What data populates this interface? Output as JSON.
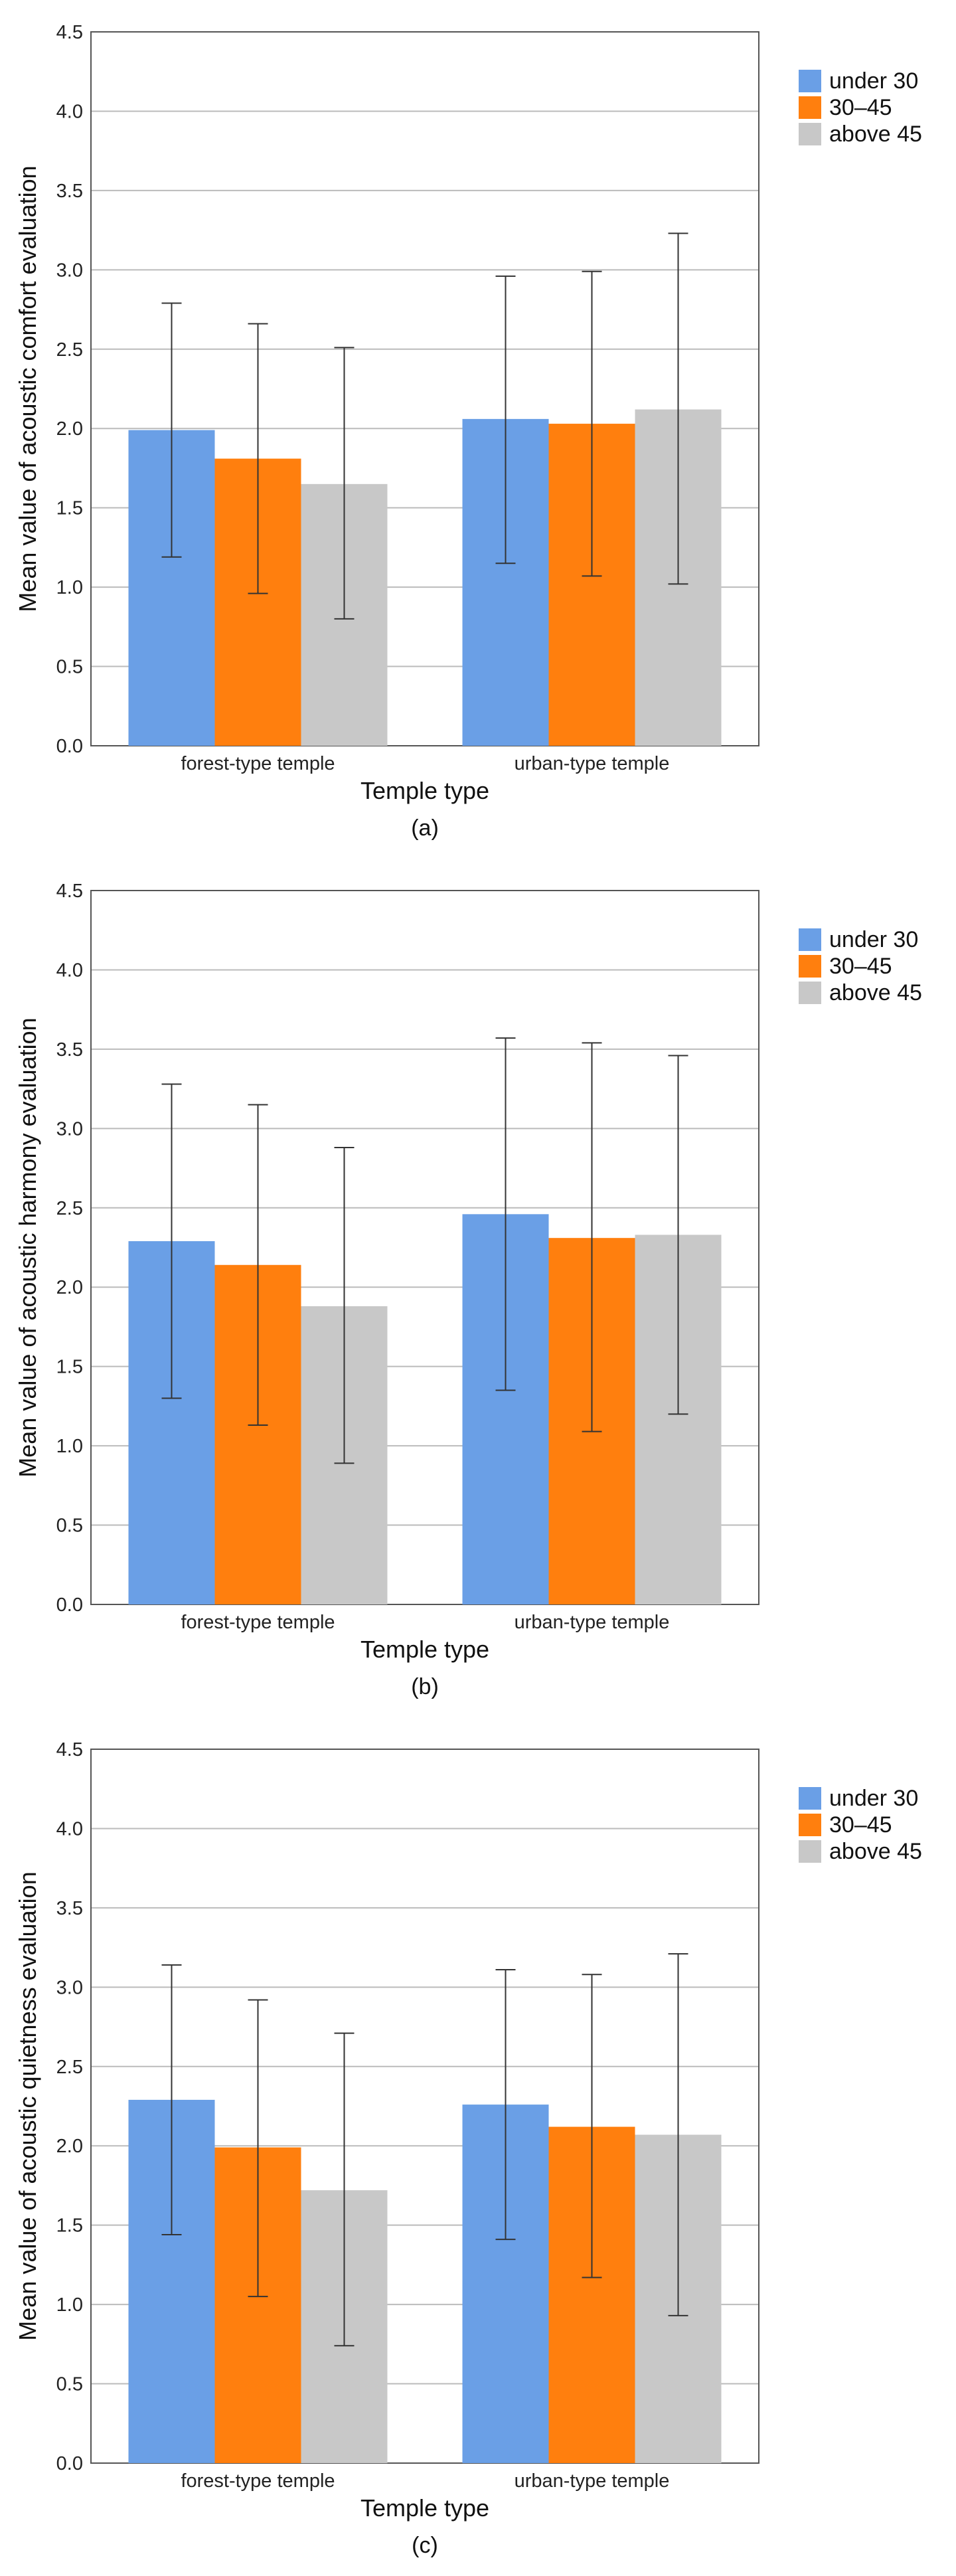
{
  "colors": {
    "series": [
      "#6A9FE6",
      "#FF7F0E",
      "#C8C8C8"
    ],
    "grid": "#BBBBBB",
    "axis": "#555555",
    "errorbar": "#333333"
  },
  "chart_data": [
    {
      "type": "bar",
      "caption": "(a)",
      "xlabel": "Temple type",
      "ylabel": "Mean value of acoustic comfort evaluation",
      "ylim": [
        0,
        4.5
      ],
      "yticks": [
        "0.0",
        "0.5",
        "1.0",
        "1.5",
        "2.0",
        "2.5",
        "3.0",
        "3.5",
        "4.0",
        "4.5"
      ],
      "grid": true,
      "legend_position": "top-right",
      "categories": [
        "forest-type temple",
        "urban-type temple"
      ],
      "series": [
        {
          "name": "under 30",
          "values": [
            1.99,
            2.06
          ],
          "error_low": [
            1.19,
            1.15
          ],
          "error_high": [
            2.79,
            2.96
          ]
        },
        {
          "name": "30–45",
          "values": [
            1.81,
            2.03
          ],
          "error_low": [
            0.96,
            1.07
          ],
          "error_high": [
            2.66,
            2.99
          ]
        },
        {
          "name": "above 45",
          "values": [
            1.65,
            2.12
          ],
          "error_low": [
            0.8,
            1.02
          ],
          "error_high": [
            2.51,
            3.23
          ]
        }
      ]
    },
    {
      "type": "bar",
      "caption": "(b)",
      "xlabel": "Temple type",
      "ylabel": "Mean value of acoustic harmony evaluation",
      "ylim": [
        0,
        4.5
      ],
      "yticks": [
        "0.0",
        "0.5",
        "1.0",
        "1.5",
        "2.0",
        "2.5",
        "3.0",
        "3.5",
        "4.0",
        "4.5"
      ],
      "grid": true,
      "legend_position": "top-right",
      "categories": [
        "forest-type temple",
        "urban-type temple"
      ],
      "series": [
        {
          "name": "under 30",
          "values": [
            2.29,
            2.46
          ],
          "error_low": [
            1.3,
            1.35
          ],
          "error_high": [
            3.28,
            3.57
          ]
        },
        {
          "name": "30–45",
          "values": [
            2.14,
            2.31
          ],
          "error_low": [
            1.13,
            1.09
          ],
          "error_high": [
            3.15,
            3.54
          ]
        },
        {
          "name": "above 45",
          "values": [
            1.88,
            2.33
          ],
          "error_low": [
            0.89,
            1.2
          ],
          "error_high": [
            2.88,
            3.46
          ]
        }
      ]
    },
    {
      "type": "bar",
      "caption": "(c)",
      "xlabel": "Temple type",
      "ylabel": "Mean value of acoustic quietness evaluation",
      "ylim": [
        0,
        4.5
      ],
      "yticks": [
        "0.0",
        "0.5",
        "1.0",
        "1.5",
        "2.0",
        "2.5",
        "3.0",
        "3.5",
        "4.0",
        "4.5"
      ],
      "grid": true,
      "legend_position": "top-right",
      "categories": [
        "forest-type temple",
        "urban-type temple"
      ],
      "series": [
        {
          "name": "under 30",
          "values": [
            2.29,
            2.26
          ],
          "error_low": [
            1.44,
            1.41
          ],
          "error_high": [
            3.14,
            3.11
          ]
        },
        {
          "name": "30–45",
          "values": [
            1.99,
            2.12
          ],
          "error_low": [
            1.05,
            1.17
          ],
          "error_high": [
            2.92,
            3.08
          ]
        },
        {
          "name": "above 45",
          "values": [
            1.72,
            2.07
          ],
          "error_low": [
            0.74,
            0.93
          ],
          "error_high": [
            2.71,
            3.21
          ]
        }
      ]
    }
  ]
}
